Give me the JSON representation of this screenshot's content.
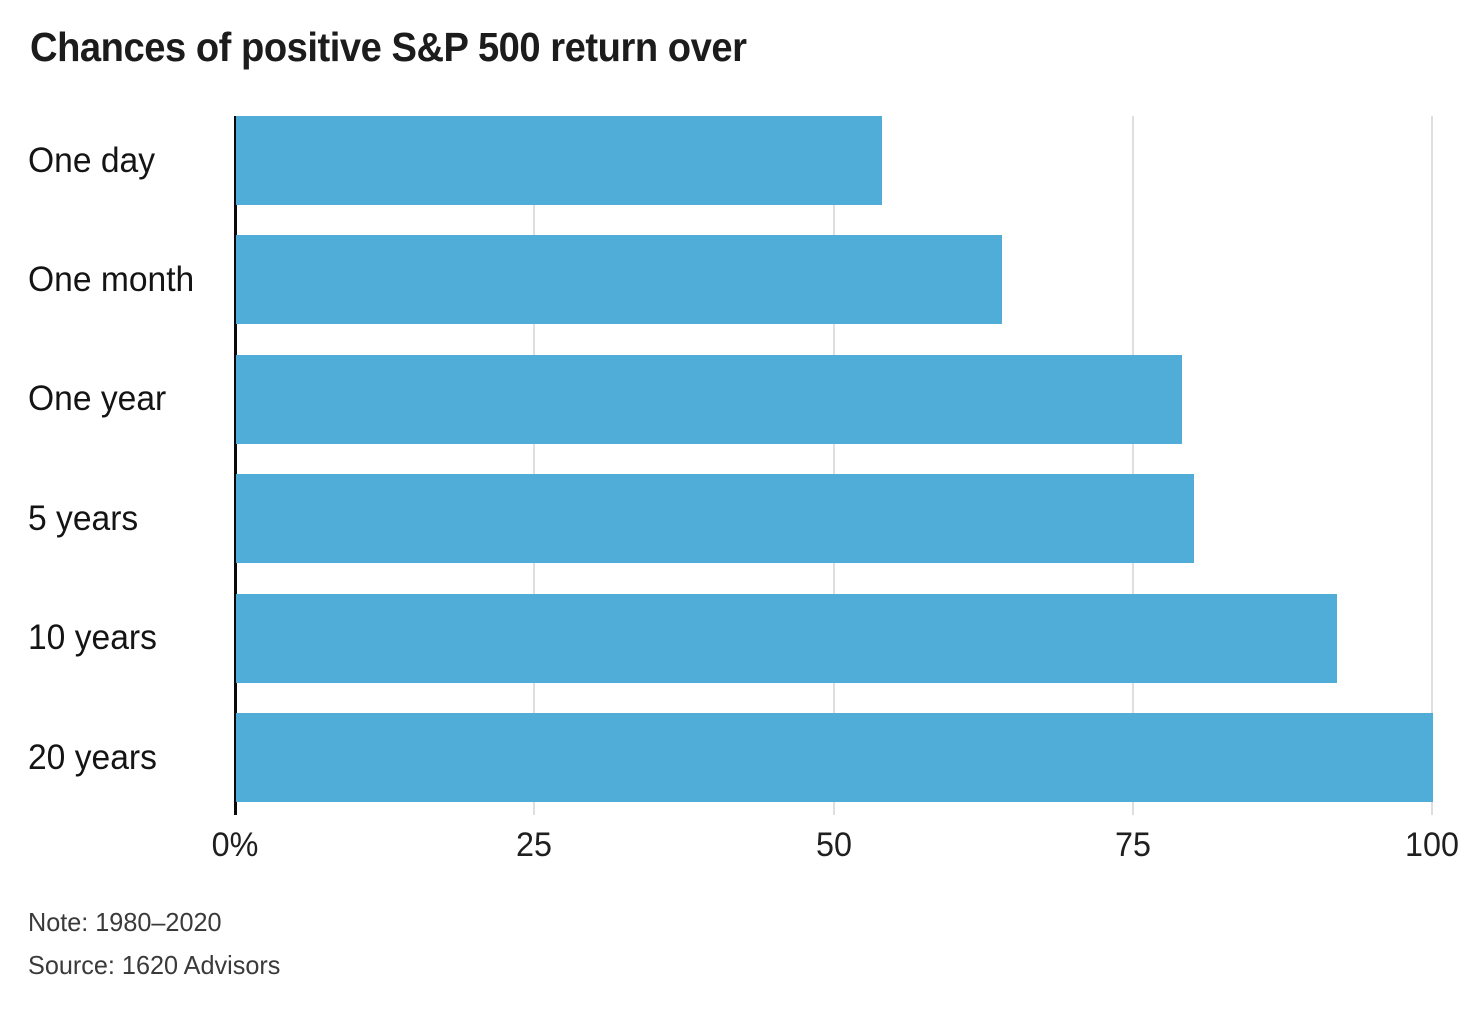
{
  "header": {
    "title": "Chances of positive S&P 500 return over"
  },
  "chart_data": {
    "type": "bar",
    "orientation": "horizontal",
    "title": "Chances of positive S&P 500 return over",
    "categories": [
      "One day",
      "One month",
      "One year",
      "5 years",
      "10 years",
      "20 years"
    ],
    "values": [
      54,
      64,
      79,
      80,
      92,
      100
    ],
    "unit": "%",
    "xlim": [
      0,
      100
    ],
    "x_ticks": [
      {
        "value": 0,
        "label": "0%"
      },
      {
        "value": 25,
        "label": "25"
      },
      {
        "value": 50,
        "label": "50"
      },
      {
        "value": 75,
        "label": "75"
      },
      {
        "value": 100,
        "label": "100"
      }
    ],
    "grid": "vertical-gridlines-on",
    "legend": "none",
    "bar_color": "#4FADD8",
    "gridline_color": "#dedede",
    "zero_line_color": "#0a0a0a"
  },
  "footer": {
    "note": "Note: 1980–2020",
    "source": "Source: 1620 Advisors"
  }
}
